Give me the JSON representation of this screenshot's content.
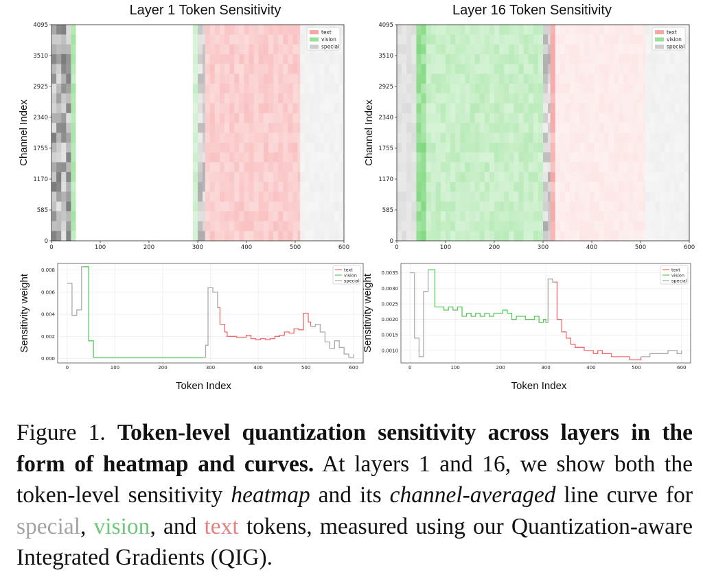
{
  "colors": {
    "text": "#f26b6b",
    "vision": "#55cc55",
    "special": "#aaaaaa"
  },
  "figure": {
    "caption_prefix": "Figure 1.",
    "caption_bold": "Token-level quantization sensitivity across layers in the form of heatmap and curves.",
    "caption_part1": "At layers 1 and 16, we show both the token-level sensitivity",
    "caption_heatmap": "heatmap",
    "caption_part2": "and its",
    "caption_channel": "channel-averaged",
    "caption_part3": "line curve for",
    "caption_special": "special",
    "caption_sep1": ",",
    "caption_vision": "vision",
    "caption_sep2": ", and",
    "caption_text": "text",
    "caption_part4": "tokens, measured using our Quantization-aware Integrated Gradients (QIG)."
  },
  "chart_data": [
    {
      "type": "heatmap",
      "title": "Layer 1 Token Sensitivity",
      "xlabel": "",
      "ylabel": "Channel Index",
      "xlim": [
        0,
        600
      ],
      "ylim": [
        0,
        4095
      ],
      "xticks": [
        "0",
        "100",
        "200",
        "300",
        "400",
        "500",
        "600"
      ],
      "yticks": [
        "0",
        "585",
        "1170",
        "1755",
        "2340",
        "2925",
        "3510",
        "4095"
      ],
      "legend": [
        "text",
        "vision",
        "special"
      ],
      "legend_position": "top-right",
      "segments": [
        {
          "type": "special",
          "x": [
            0,
            40
          ],
          "intensity": 0.55
        },
        {
          "type": "vision",
          "x": [
            40,
            50
          ],
          "intensity": 0.4
        },
        {
          "type": "vision",
          "x": [
            50,
            290
          ],
          "intensity": 0.0
        },
        {
          "type": "vision",
          "x": [
            290,
            300
          ],
          "intensity": 0.25
        },
        {
          "type": "special",
          "x": [
            300,
            315
          ],
          "intensity": 0.35
        },
        {
          "type": "text",
          "x": [
            315,
            510
          ],
          "intensity": 0.3
        },
        {
          "type": "special",
          "x": [
            510,
            600
          ],
          "intensity": 0.08
        }
      ]
    },
    {
      "type": "heatmap",
      "title": "Layer 16 Token Sensitivity",
      "xlabel": "",
      "ylabel": "Channel Index",
      "xlim": [
        0,
        600
      ],
      "ylim": [
        0,
        4095
      ],
      "xticks": [
        "0",
        "100",
        "200",
        "300",
        "400",
        "500",
        "600"
      ],
      "yticks": [
        "0",
        "585",
        "1170",
        "1755",
        "2340",
        "2925",
        "3510",
        "4095"
      ],
      "legend": [
        "text",
        "vision",
        "special"
      ],
      "legend_position": "top-right",
      "segments": [
        {
          "type": "special",
          "x": [
            0,
            40
          ],
          "intensity": 0.18
        },
        {
          "type": "vision",
          "x": [
            40,
            60
          ],
          "intensity": 0.55
        },
        {
          "type": "vision",
          "x": [
            60,
            300
          ],
          "intensity": 0.3
        },
        {
          "type": "special",
          "x": [
            300,
            315
          ],
          "intensity": 0.35
        },
        {
          "type": "text",
          "x": [
            315,
            325
          ],
          "intensity": 0.45
        },
        {
          "type": "text",
          "x": [
            325,
            510
          ],
          "intensity": 0.12
        },
        {
          "type": "special",
          "x": [
            510,
            600
          ],
          "intensity": 0.08
        }
      ]
    },
    {
      "type": "line",
      "title": "",
      "xlabel": "Token Index",
      "ylabel": "Sensitivity weight",
      "xlim": [
        -20,
        620
      ],
      "ylim": [
        -0.0004,
        0.0086
      ],
      "xticks": [
        "0",
        "100",
        "200",
        "300",
        "400",
        "500",
        "600"
      ],
      "yticks": [
        "0.000",
        "0.002",
        "0.004",
        "0.006",
        "0.008"
      ],
      "legend": [
        "text",
        "vision",
        "special"
      ],
      "legend_position": "top-right",
      "series": [
        {
          "name": "special",
          "x": [
            0,
            5,
            10,
            15,
            20,
            25,
            30,
            35
          ],
          "y": [
            0.0068,
            0.0068,
            0.0039,
            0.0039,
            0.0044,
            0.0044,
            0.0083,
            0.0083
          ]
        },
        {
          "name": "vision",
          "x": [
            35,
            40,
            45,
            50,
            55,
            60,
            100,
            150,
            200,
            250,
            285
          ],
          "y": [
            0.0083,
            0.0083,
            0.0016,
            0.0016,
            0.0001,
            0.0001,
            0.0001,
            0.0001,
            0.0001,
            0.0001,
            0.0001
          ]
        },
        {
          "name": "special",
          "x": [
            285,
            290,
            295,
            300,
            305,
            310,
            315
          ],
          "y": [
            0.0001,
            0.0012,
            0.0064,
            0.0064,
            0.006,
            0.006,
            0.0046
          ]
        },
        {
          "name": "text",
          "x": [
            315,
            320,
            325,
            330,
            335,
            345,
            355,
            365,
            375,
            385,
            395,
            405,
            415,
            425,
            435,
            445,
            455,
            465,
            475,
            485,
            495,
            500,
            505,
            510
          ],
          "y": [
            0.0046,
            0.0031,
            0.0031,
            0.0024,
            0.002,
            0.002,
            0.0019,
            0.0019,
            0.0021,
            0.0018,
            0.0017,
            0.0018,
            0.0017,
            0.0018,
            0.002,
            0.0021,
            0.0024,
            0.0023,
            0.0027,
            0.0026,
            0.0041,
            0.0041,
            0.0033,
            0.0029
          ]
        },
        {
          "name": "special",
          "x": [
            510,
            520,
            530,
            540,
            550,
            560,
            570,
            580,
            590,
            600
          ],
          "y": [
            0.0029,
            0.0031,
            0.0024,
            0.0015,
            0.0009,
            0.0016,
            0.001,
            0.0004,
            0.0001,
            0.0004
          ]
        }
      ]
    },
    {
      "type": "line",
      "title": "",
      "xlabel": "Token Index",
      "ylabel": "Sensitivity weight",
      "xlim": [
        -20,
        620
      ],
      "ylim": [
        0.0006,
        0.0038
      ],
      "xticks": [
        "0",
        "100",
        "200",
        "300",
        "400",
        "500",
        "600"
      ],
      "yticks": [
        "0.0010",
        "0.0015",
        "0.0020",
        "0.0025",
        "0.0030",
        "0.0035"
      ],
      "legend": [
        "text",
        "vision",
        "special"
      ],
      "legend_position": "top-right",
      "series": [
        {
          "name": "special",
          "x": [
            0,
            5,
            10,
            15,
            20,
            25,
            30,
            35,
            40
          ],
          "y": [
            0.0035,
            0.0035,
            0.0014,
            0.0014,
            0.0008,
            0.0008,
            0.0029,
            0.0029,
            0.0036
          ]
        },
        {
          "name": "vision",
          "x": [
            40,
            50,
            55,
            65,
            75,
            85,
            95,
            105,
            115,
            125,
            135,
            145,
            155,
            165,
            175,
            185,
            195,
            205,
            215,
            225,
            235,
            245,
            255,
            265,
            275,
            285,
            295,
            300
          ],
          "y": [
            0.0036,
            0.0036,
            0.0024,
            0.0024,
            0.0023,
            0.0024,
            0.0023,
            0.0024,
            0.0021,
            0.0022,
            0.0021,
            0.0022,
            0.0021,
            0.0022,
            0.0021,
            0.0022,
            0.0022,
            0.0023,
            0.0022,
            0.002,
            0.0021,
            0.0021,
            0.002,
            0.002,
            0.0021,
            0.0019,
            0.002,
            0.0019
          ]
        },
        {
          "name": "special",
          "x": [
            300,
            305,
            310,
            315,
            320
          ],
          "y": [
            0.0019,
            0.0033,
            0.0033,
            0.0032,
            0.0032
          ]
        },
        {
          "name": "text",
          "x": [
            320,
            325,
            335,
            345,
            355,
            365,
            375,
            385,
            395,
            405,
            415,
            425,
            435,
            445,
            455,
            465,
            475,
            485,
            495,
            505,
            510
          ],
          "y": [
            0.0032,
            0.002,
            0.0016,
            0.0014,
            0.0012,
            0.0011,
            0.0011,
            0.001,
            0.001,
            0.0009,
            0.001,
            0.0009,
            0.0009,
            0.0008,
            0.0008,
            0.0008,
            0.0008,
            0.0007,
            0.0007,
            0.0007,
            0.0008
          ]
        },
        {
          "name": "special",
          "x": [
            510,
            520,
            530,
            540,
            550,
            560,
            570,
            580,
            590,
            600
          ],
          "y": [
            0.0008,
            0.0008,
            0.0009,
            0.0009,
            0.0009,
            0.0009,
            0.001,
            0.001,
            0.0009,
            0.001
          ]
        }
      ]
    }
  ]
}
